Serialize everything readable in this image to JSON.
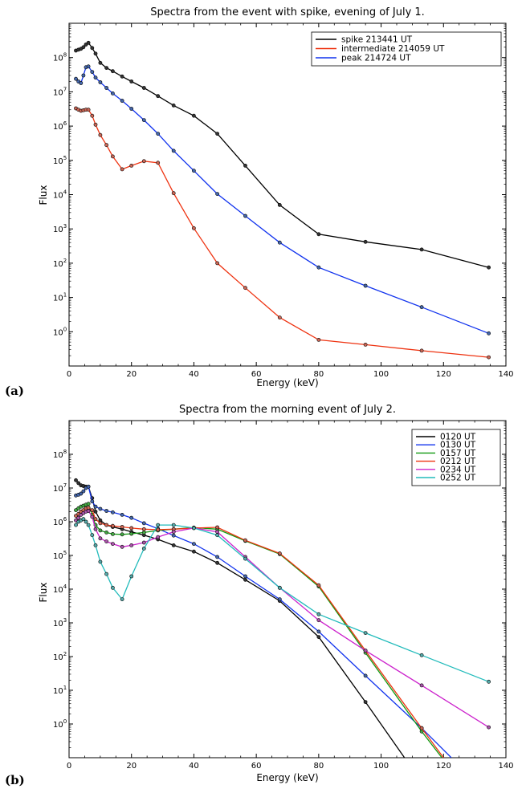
{
  "chart_data": [
    {
      "panel_label": "(a)",
      "type": "line",
      "title": "Spectra from the event with spike, evening of July 1.",
      "xlabel": "Energy (keV)",
      "ylabel": "Flux",
      "xlim": [
        0,
        140
      ],
      "ylim": [
        0.1,
        1000000000.0
      ],
      "yscale": "log",
      "xticks": [
        0,
        20,
        40,
        60,
        80,
        100,
        120,
        140
      ],
      "yticks": [
        1,
        10,
        100,
        1000,
        10000,
        100000,
        1000000,
        10000000,
        100000000
      ],
      "ytick_labels": [
        {
          "base": "10",
          "exp": "0"
        },
        {
          "base": "10",
          "exp": "1"
        },
        {
          "base": "10",
          "exp": "2"
        },
        {
          "base": "10",
          "exp": "3"
        },
        {
          "base": "10",
          "exp": "4"
        },
        {
          "base": "10",
          "exp": "5"
        },
        {
          "base": "10",
          "exp": "6"
        },
        {
          "base": "10",
          "exp": "7"
        },
        {
          "base": "10",
          "exp": "8"
        }
      ],
      "legend_position": "top-right",
      "series": [
        {
          "name": "spike 213441 UT",
          "color": "#000000",
          "marker_fill": "#333333",
          "x": [
            2.2,
            3.0,
            3.8,
            4.6,
            5.4,
            6.2,
            7.4,
            8.5,
            10.0,
            12.0,
            14.0,
            17.0,
            20.0,
            24.0,
            28.5,
            33.5,
            40.0,
            47.5,
            56.5,
            67.5,
            80.0,
            95.0,
            113.0,
            134.5
          ],
          "y": [
            160000000.0,
            170000000.0,
            180000000.0,
            200000000.0,
            240000000.0,
            270000000.0,
            190000000.0,
            130000000.0,
            70000000.0,
            50000000.0,
            40000000.0,
            28000000.0,
            20000000.0,
            13000000.0,
            7500000.0,
            4000000.0,
            2000000.0,
            600000.0,
            70000.0,
            5000.0,
            700,
            420,
            250,
            75
          ]
        },
        {
          "name": "intermediate 214059 UT",
          "color": "#ee3311",
          "marker_fill": "#cc6655",
          "x": [
            2.2,
            3.0,
            3.8,
            4.6,
            5.4,
            6.2,
            7.4,
            8.5,
            10.0,
            12.0,
            14.0,
            17.0,
            20.0,
            24.0,
            28.5,
            33.5,
            40.0,
            47.5,
            56.5,
            67.5,
            80.0,
            95.0,
            113.0,
            134.5
          ],
          "y": [
            3300000.0,
            3000000.0,
            2800000.0,
            2900000.0,
            3000000.0,
            3000000.0,
            2000000.0,
            1100000.0,
            550000.0,
            280000.0,
            130000.0,
            55000.0,
            70000.0,
            95000.0,
            85000.0,
            11000.0,
            1050.0,
            100,
            19,
            2.6,
            0.58,
            0.42,
            0.28,
            0.18
          ]
        },
        {
          "name": "peak 214724 UT",
          "color": "#1133ee",
          "marker_fill": "#4466aa",
          "x": [
            2.2,
            3.0,
            3.8,
            4.6,
            5.4,
            6.2,
            7.4,
            8.5,
            10.0,
            12.0,
            14.0,
            17.0,
            20.0,
            24.0,
            28.5,
            33.5,
            40.0,
            47.5,
            56.5,
            67.5,
            80.0,
            95.0,
            113.0,
            134.5
          ],
          "y": [
            24000000.0,
            20000000.0,
            18000000.0,
            30000000.0,
            52000000.0,
            55000000.0,
            38000000.0,
            26000000.0,
            19000000.0,
            13000000.0,
            9000000.0,
            5500000.0,
            3200000.0,
            1500000.0,
            600000.0,
            190000.0,
            50000.0,
            10500.0,
            2400.0,
            400,
            75,
            22,
            5.2,
            0.9
          ]
        }
      ]
    },
    {
      "panel_label": "(b)",
      "type": "line",
      "title": "Spectra from the morning event of July 2.",
      "xlabel": "Energy (keV)",
      "ylabel": "Flux",
      "xlim": [
        0,
        140
      ],
      "ylim": [
        0.1,
        1000000000.0
      ],
      "yscale": "log",
      "xticks": [
        0,
        20,
        40,
        60,
        80,
        100,
        120,
        140
      ],
      "yticks": [
        1,
        10,
        100,
        1000,
        10000,
        100000,
        1000000,
        10000000,
        100000000
      ],
      "ytick_labels": [
        {
          "base": "10",
          "exp": "0"
        },
        {
          "base": "10",
          "exp": "1"
        },
        {
          "base": "10",
          "exp": "2"
        },
        {
          "base": "10",
          "exp": "3"
        },
        {
          "base": "10",
          "exp": "4"
        },
        {
          "base": "10",
          "exp": "5"
        },
        {
          "base": "10",
          "exp": "6"
        },
        {
          "base": "10",
          "exp": "7"
        },
        {
          "base": "10",
          "exp": "8"
        }
      ],
      "legend_position": "top-right",
      "series": [
        {
          "name": "0120 UT",
          "color": "#000000",
          "marker_fill": "#333333",
          "x": [
            2.2,
            3.0,
            3.8,
            4.6,
            5.4,
            6.2,
            7.4,
            8.5,
            10.0,
            12.0,
            14.0,
            17.0,
            20.0,
            24.0,
            28.5,
            33.5,
            40.0,
            47.5,
            56.5,
            67.5,
            80.0,
            95.0,
            107.5
          ],
          "y": [
            17000000.0,
            14000000.0,
            12000000.0,
            11500000.0,
            11000000.0,
            11000000.0,
            5000000.0,
            2000000.0,
            1100000.0,
            800000.0,
            700000.0,
            600000.0,
            500000.0,
            400000.0,
            300000.0,
            200000.0,
            130000.0,
            60000.0,
            19000.0,
            4500.0,
            380,
            4.5,
            0.1
          ]
        },
        {
          "name": "0130 UT",
          "color": "#1133ee",
          "marker_fill": "#4466aa",
          "x": [
            2.2,
            3.0,
            3.8,
            4.6,
            5.4,
            6.2,
            7.4,
            8.5,
            10.0,
            12.0,
            14.0,
            17.0,
            20.0,
            24.0,
            28.5,
            33.5,
            40.0,
            47.5,
            56.5,
            67.5,
            80.0,
            95.0,
            113.0,
            122.5
          ],
          "y": [
            6000000.0,
            6300000.0,
            6800000.0,
            8000000.0,
            10000000.0,
            11000000.0,
            4000000.0,
            2800000.0,
            2400000.0,
            2100000.0,
            1900000.0,
            1600000.0,
            1300000.0,
            900000.0,
            620000.0,
            390000.0,
            220000.0,
            90000.0,
            24000.0,
            5000.0,
            550,
            27,
            0.75,
            0.1
          ]
        },
        {
          "name": "0157 UT",
          "color": "#119911",
          "marker_fill": "#44aa44",
          "x": [
            2.2,
            3.0,
            3.8,
            4.6,
            5.4,
            6.2,
            7.4,
            8.5,
            10.0,
            12.0,
            14.0,
            17.0,
            20.0,
            24.0,
            28.5,
            33.5,
            40.0,
            47.5,
            56.5,
            67.5,
            80.0,
            95.0,
            113.0,
            119.5
          ],
          "y": [
            2200000.0,
            2500000.0,
            2800000.0,
            3000000.0,
            3200000.0,
            3400000.0,
            1600000.0,
            800000.0,
            550000.0,
            480000.0,
            430000.0,
            420000.0,
            440000.0,
            480000.0,
            550000.0,
            600000.0,
            670000.0,
            600000.0,
            270000.0,
            110000.0,
            12000.0,
            130,
            0.6,
            0.1
          ]
        },
        {
          "name": "0212 UT",
          "color": "#ee3311",
          "marker_fill": "#cc6655",
          "x": [
            2.2,
            3.0,
            3.8,
            4.6,
            5.4,
            6.2,
            7.4,
            8.5,
            10.0,
            12.0,
            14.0,
            17.0,
            20.0,
            24.0,
            28.5,
            33.5,
            40.0,
            47.5,
            56.5,
            67.5,
            80.0,
            95.0,
            113.0,
            120.0
          ],
          "y": [
            1500000.0,
            1700000.0,
            2000000.0,
            2200000.0,
            2500000.0,
            2600000.0,
            2200000.0,
            1200000.0,
            900000.0,
            800000.0,
            750000.0,
            700000.0,
            650000.0,
            600000.0,
            580000.0,
            600000.0,
            650000.0,
            680000.0,
            280000.0,
            115000.0,
            13000.0,
            150,
            0.75,
            0.1
          ]
        },
        {
          "name": "0234 UT",
          "color": "#cc22cc",
          "marker_fill": "#aa55aa",
          "x": [
            2.2,
            3.0,
            3.8,
            4.6,
            5.4,
            6.2,
            7.4,
            8.5,
            10.0,
            12.0,
            14.0,
            17.0,
            20.0,
            24.0,
            28.5,
            33.5,
            40.0,
            47.5,
            56.5,
            67.5,
            80.0,
            95.0,
            113.0,
            134.5
          ],
          "y": [
            1100000.0,
            1300000.0,
            1600000.0,
            1800000.0,
            2000000.0,
            2100000.0,
            1400000.0,
            600000.0,
            320000.0,
            260000.0,
            220000.0,
            180000.0,
            200000.0,
            240000.0,
            350000.0,
            500000.0,
            650000.0,
            500000.0,
            90000.0,
            11000.0,
            1200.0,
            150,
            14,
            0.8
          ]
        },
        {
          "name": "0252 UT",
          "color": "#22bbbb",
          "marker_fill": "#55aaaa",
          "x": [
            2.2,
            3.0,
            3.8,
            4.6,
            5.4,
            6.2,
            7.4,
            8.5,
            10.0,
            12.0,
            14.0,
            17.0,
            20.0,
            24.0,
            28.5,
            33.5,
            40.0,
            47.5,
            56.5,
            67.5,
            80.0,
            95.0,
            113.0,
            134.5
          ],
          "y": [
            800000.0,
            1000000.0,
            1100000.0,
            1200000.0,
            1000000.0,
            800000.0,
            400000.0,
            200000.0,
            65000.0,
            28000.0,
            11000.0,
            5000.0,
            24000.0,
            160000.0,
            800000.0,
            800000.0,
            650000.0,
            400000.0,
            80000.0,
            11000.0,
            1800.0,
            500,
            110,
            18
          ]
        }
      ]
    }
  ]
}
